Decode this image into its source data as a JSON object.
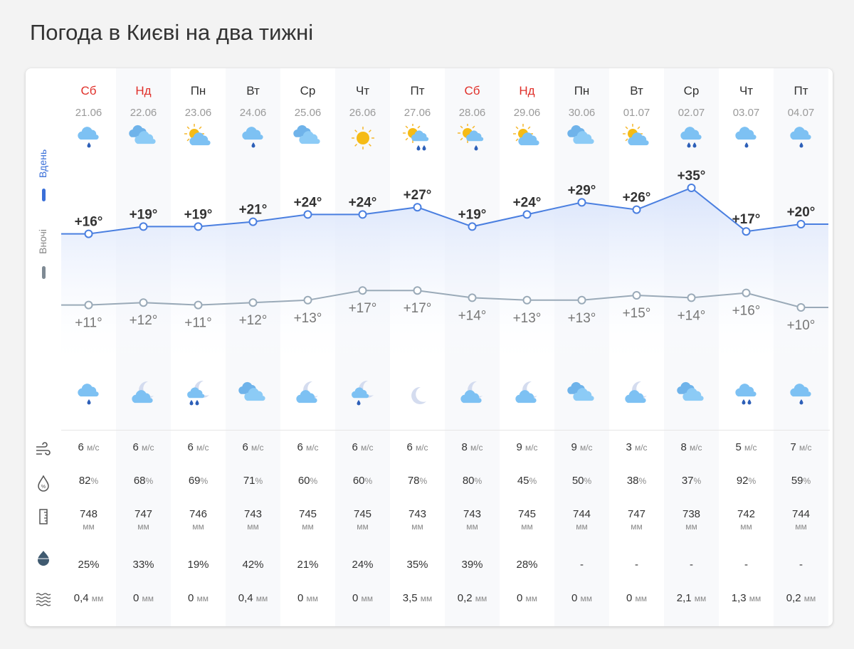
{
  "title": "Погода в Києві на два тижні",
  "side_labels": {
    "day": "Вдень",
    "night": "Вночі"
  },
  "colors": {
    "weekend": "#e0302a",
    "day_line": "#4a7fe0",
    "night_line": "#9aaab8",
    "accent": "#3a6fd8"
  },
  "units": {
    "wind": "м/с",
    "percent": "%",
    "mm": "мм"
  },
  "days": [
    {
      "name": "Сб",
      "date": "21.06",
      "weekend": true,
      "day_icon": "cloud-rain-1",
      "night_icon": "cloud-rain-1",
      "t_day": 16,
      "t_night": 11,
      "day_label": "+16°",
      "night_label": "+11°",
      "wind": "6",
      "humidity": "82",
      "pressure": "748",
      "precip_prob": "25%",
      "precip": "0,4"
    },
    {
      "name": "Нд",
      "date": "22.06",
      "weekend": true,
      "day_icon": "clouds",
      "night_icon": "moon-cloud",
      "t_day": 19,
      "t_night": 12,
      "day_label": "+19°",
      "night_label": "+12°",
      "wind": "6",
      "humidity": "68",
      "pressure": "747",
      "precip_prob": "33%",
      "precip": "0"
    },
    {
      "name": "Пн",
      "date": "23.06",
      "weekend": false,
      "day_icon": "sun-cloud",
      "night_icon": "moon-cloud-rain-2",
      "t_day": 19,
      "t_night": 11,
      "day_label": "+19°",
      "night_label": "+11°",
      "wind": "6",
      "humidity": "69",
      "pressure": "746",
      "precip_prob": "19%",
      "precip": "0"
    },
    {
      "name": "Вт",
      "date": "24.06",
      "weekend": false,
      "day_icon": "cloud-rain-1",
      "night_icon": "clouds",
      "t_day": 21,
      "t_night": 12,
      "day_label": "+21°",
      "night_label": "+12°",
      "wind": "6",
      "humidity": "71",
      "pressure": "743",
      "precip_prob": "42%",
      "precip": "0,4"
    },
    {
      "name": "Ср",
      "date": "25.06",
      "weekend": false,
      "day_icon": "clouds",
      "night_icon": "moon-cloud",
      "t_day": 24,
      "t_night": 13,
      "day_label": "+24°",
      "night_label": "+13°",
      "wind": "6",
      "humidity": "60",
      "pressure": "745",
      "precip_prob": "21%",
      "precip": "0"
    },
    {
      "name": "Чт",
      "date": "26.06",
      "weekend": false,
      "day_icon": "sun",
      "night_icon": "moon-cloud-rain-1",
      "t_day": 24,
      "t_night": 17,
      "day_label": "+24°",
      "night_label": "+17°",
      "wind": "6",
      "humidity": "60",
      "pressure": "745",
      "precip_prob": "24%",
      "precip": "0"
    },
    {
      "name": "Пт",
      "date": "27.06",
      "weekend": false,
      "day_icon": "sun-cloud-rain-2",
      "night_icon": "moon",
      "t_day": 27,
      "t_night": 17,
      "day_label": "+27°",
      "night_label": "+17°",
      "wind": "6",
      "humidity": "78",
      "pressure": "743",
      "precip_prob": "35%",
      "precip": "3,5"
    },
    {
      "name": "Сб",
      "date": "28.06",
      "weekend": true,
      "day_icon": "sun-cloud-rain-1",
      "night_icon": "moon-cloud",
      "t_day": 19,
      "t_night": 14,
      "day_label": "+19°",
      "night_label": "+14°",
      "wind": "8",
      "humidity": "80",
      "pressure": "743",
      "precip_prob": "39%",
      "precip": "0,2"
    },
    {
      "name": "Нд",
      "date": "29.06",
      "weekend": true,
      "day_icon": "sun-cloud",
      "night_icon": "moon-cloud",
      "t_day": 24,
      "t_night": 13,
      "day_label": "+24°",
      "night_label": "+13°",
      "wind": "9",
      "humidity": "45",
      "pressure": "745",
      "precip_prob": "28%",
      "precip": "0"
    },
    {
      "name": "Пн",
      "date": "30.06",
      "weekend": false,
      "day_icon": "clouds",
      "night_icon": "clouds",
      "t_day": 29,
      "t_night": 13,
      "day_label": "+29°",
      "night_label": "+13°",
      "wind": "9",
      "humidity": "50",
      "pressure": "744",
      "precip_prob": "-",
      "precip": "0"
    },
    {
      "name": "Вт",
      "date": "01.07",
      "weekend": false,
      "day_icon": "sun-cloud",
      "night_icon": "moon-cloud",
      "t_day": 26,
      "t_night": 15,
      "day_label": "+26°",
      "night_label": "+15°",
      "wind": "3",
      "humidity": "38",
      "pressure": "747",
      "precip_prob": "-",
      "precip": "0"
    },
    {
      "name": "Ср",
      "date": "02.07",
      "weekend": false,
      "day_icon": "cloud-rain-2",
      "night_icon": "clouds",
      "t_day": 35,
      "t_night": 14,
      "day_label": "+35°",
      "night_label": "+14°",
      "wind": "8",
      "humidity": "37",
      "pressure": "738",
      "precip_prob": "-",
      "precip": "2,1"
    },
    {
      "name": "Чт",
      "date": "03.07",
      "weekend": false,
      "day_icon": "cloud-rain-1",
      "night_icon": "cloud-rain-2",
      "t_day": 17,
      "t_night": 16,
      "day_label": "+17°",
      "night_label": "+16°",
      "wind": "5",
      "humidity": "92",
      "pressure": "742",
      "precip_prob": "-",
      "precip": "1,3"
    },
    {
      "name": "Пт",
      "date": "04.07",
      "weekend": false,
      "day_icon": "cloud-rain-1",
      "night_icon": "cloud-rain-1",
      "t_day": 20,
      "t_night": 10,
      "day_label": "+20°",
      "night_label": "+10°",
      "wind": "7",
      "humidity": "59",
      "pressure": "744",
      "precip_prob": "-",
      "precip": "0,2"
    }
  ],
  "row_icons": [
    "wind-icon",
    "humidity-icon",
    "pressure-icon",
    "precip-probability-icon",
    "precipitation-icon"
  ]
}
